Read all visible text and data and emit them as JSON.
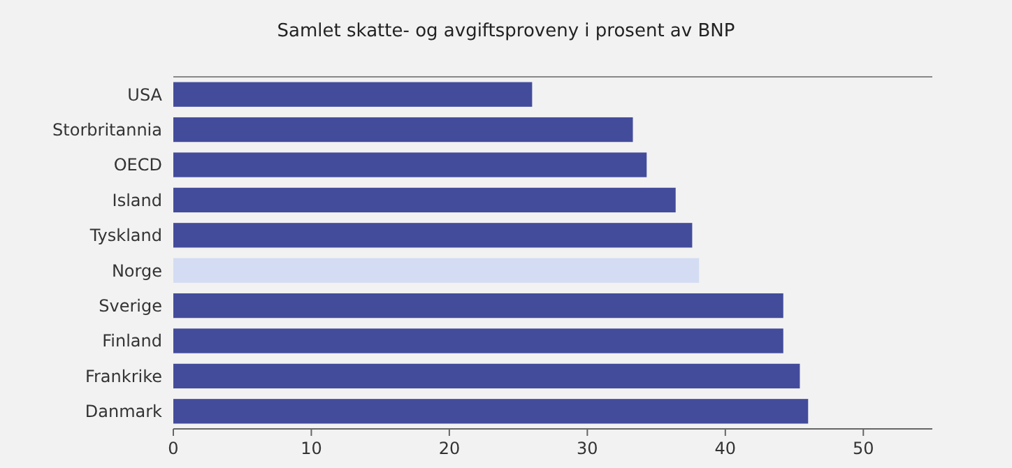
{
  "chart_data": {
    "type": "bar",
    "orientation": "horizontal",
    "title": "Samlet skatte- og avgiftsproveny i prosent av BNP",
    "categories": [
      "USA",
      "Storbritannia",
      "OECD",
      "Island",
      "Tyskland",
      "Norge",
      "Sverige",
      "Finland",
      "Frankrike",
      "Danmark"
    ],
    "values": [
      26.0,
      33.3,
      34.3,
      36.4,
      37.6,
      38.1,
      44.2,
      44.2,
      45.4,
      46.0
    ],
    "colors": [
      "#434c9b",
      "#434c9b",
      "#434c9b",
      "#434c9b",
      "#434c9b",
      "#d3dcf2",
      "#434c9b",
      "#434c9b",
      "#434c9b",
      "#434c9b"
    ],
    "xlim": [
      0,
      55
    ],
    "xticks": [
      0,
      10,
      20,
      30,
      40,
      50
    ]
  }
}
